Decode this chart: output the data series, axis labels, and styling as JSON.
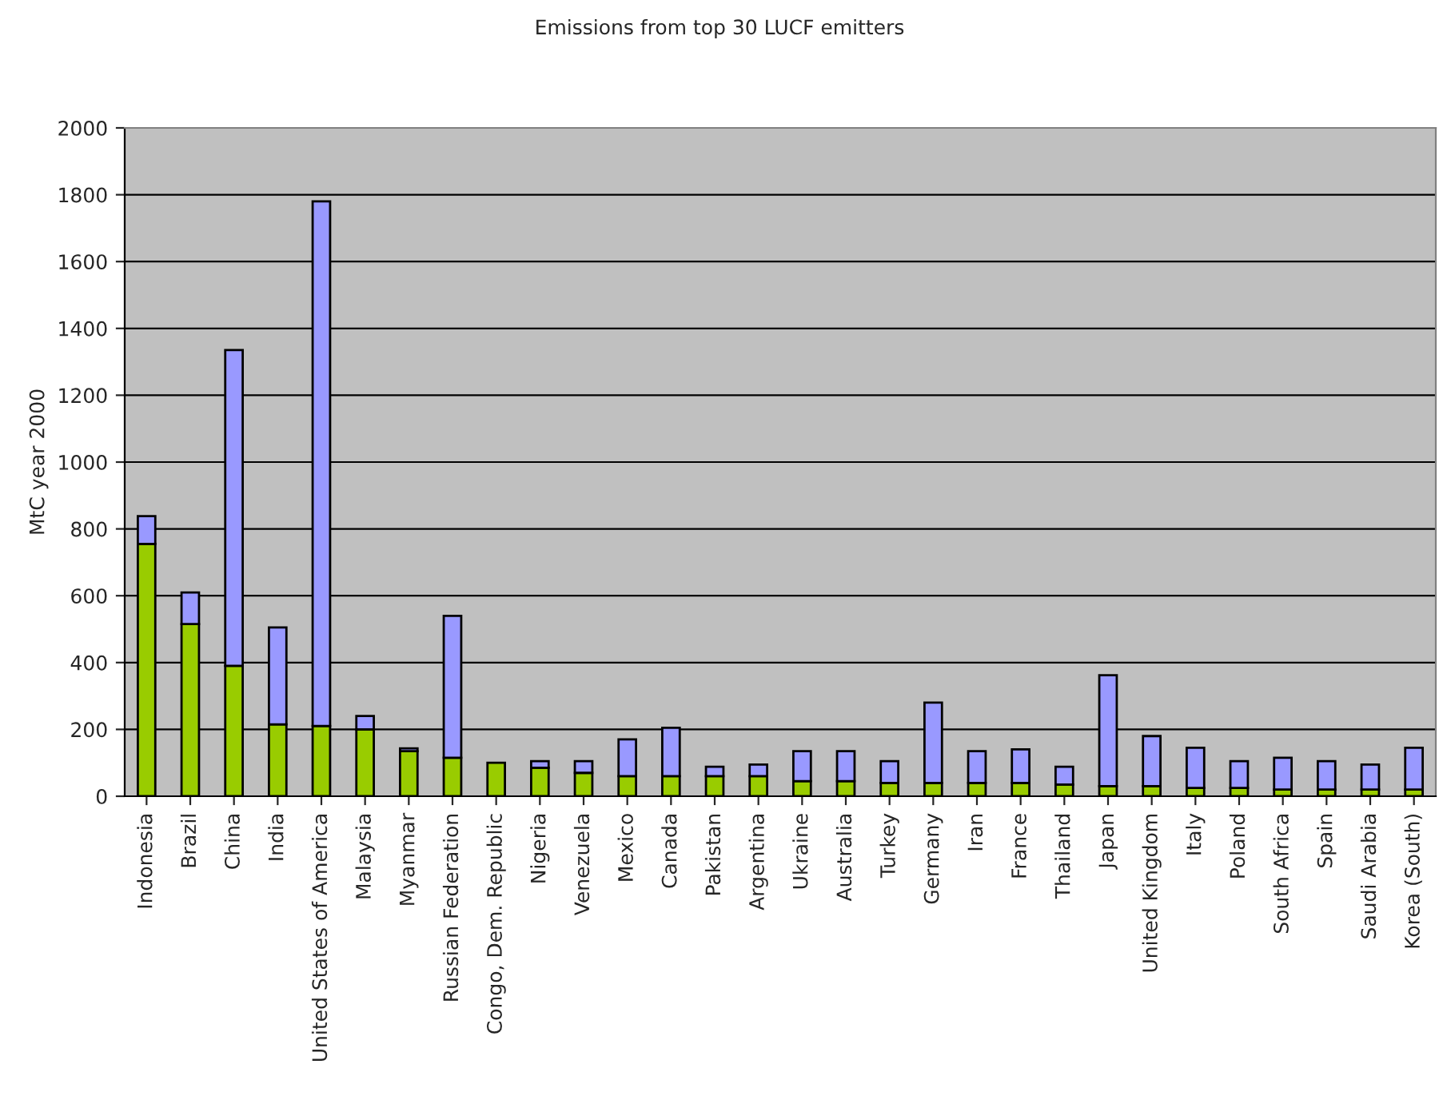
{
  "chart_data": {
    "type": "bar",
    "stacked": true,
    "title": "Emissions from top 30 LUCF emitters",
    "ylabel": "MtC year 2000",
    "categories": [
      "Indonesia",
      "Brazil",
      "China",
      "India",
      "United States of America",
      "Malaysia",
      "Myanmar",
      "Russian Federation",
      "Congo, Dem. Republic",
      "Nigeria",
      "Venezuela",
      "Mexico",
      "Canada",
      "Pakistan",
      "Argentina",
      "Ukraine",
      "Australia",
      "Turkey",
      "Germany",
      "Iran",
      "France",
      "Thailand",
      "Japan",
      "United Kingdom",
      "Italy",
      "Poland",
      "South Africa",
      "Spain",
      "Saudi Arabia",
      "Korea (South)"
    ],
    "series": [
      {
        "color": "#99cc00",
        "values": [
          755,
          515,
          390,
          215,
          210,
          200,
          135,
          115,
          100,
          85,
          70,
          60,
          60,
          60,
          60,
          45,
          45,
          40,
          40,
          40,
          40,
          35,
          30,
          30,
          25,
          25,
          20,
          20,
          20,
          20
        ]
      },
      {
        "color": "#9999ff",
        "values": [
          83,
          95,
          945,
          290,
          1570,
          40,
          8,
          425,
          null,
          20,
          35,
          110,
          145,
          28,
          35,
          90,
          90,
          65,
          240,
          95,
          100,
          53,
          332,
          150,
          120,
          80,
          95,
          85,
          75,
          125
        ]
      }
    ],
    "ylim": [
      0,
      2000
    ],
    "yticks": [
      0,
      200,
      400,
      600,
      800,
      1000,
      1200,
      1400,
      1600,
      1800,
      2000
    ],
    "grid": "y",
    "legend": false
  }
}
